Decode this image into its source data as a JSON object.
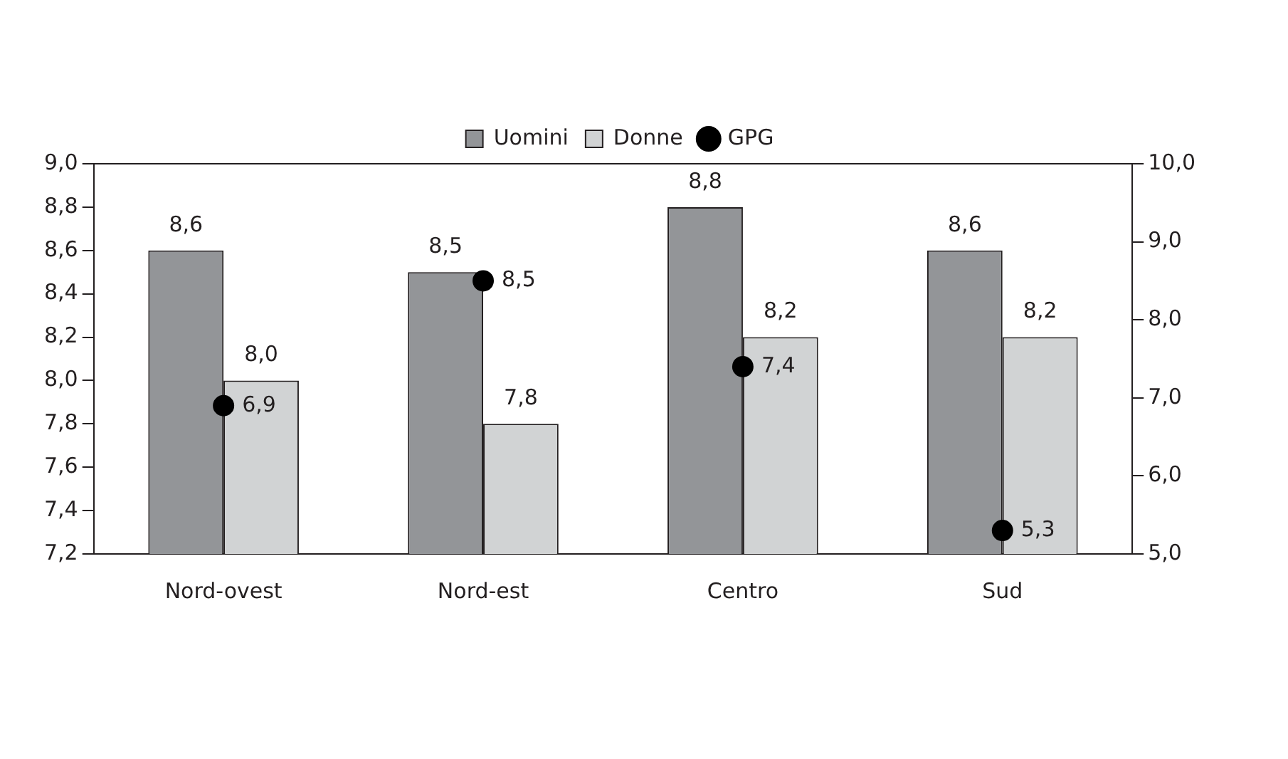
{
  "chart_data": {
    "type": "bar",
    "categories": [
      "Nord-ovest",
      "Nord-est",
      "Centro",
      "Sud"
    ],
    "series": [
      {
        "name": "Uomini",
        "color": "#939598",
        "values": [
          8.6,
          8.5,
          8.8,
          8.6
        ],
        "value_labels": [
          "8,6",
          "8,5",
          "8,8",
          "8,6"
        ]
      },
      {
        "name": "Donne",
        "color": "#d1d3d4",
        "values": [
          8.0,
          7.8,
          8.2,
          8.2
        ],
        "value_labels": [
          "8,0",
          "7,8",
          "8,2",
          "8,2"
        ]
      },
      {
        "name": "GPG",
        "type": "scatter",
        "axis": "y2",
        "color": "#000000",
        "values": [
          6.9,
          8.5,
          7.4,
          5.3
        ],
        "value_labels": [
          "6,9",
          "8,5",
          "7,4",
          "5,3"
        ]
      }
    ],
    "ylim": [
      7.2,
      9.0
    ],
    "yticks": [
      {
        "value": 7.2,
        "label": "7,2"
      },
      {
        "value": 7.4,
        "label": "7,4"
      },
      {
        "value": 7.6,
        "label": "7,6"
      },
      {
        "value": 7.8,
        "label": "7,8"
      },
      {
        "value": 8.0,
        "label": "8,0"
      },
      {
        "value": 8.2,
        "label": "8,2"
      },
      {
        "value": 8.4,
        "label": "8,4"
      },
      {
        "value": 8.6,
        "label": "8,6"
      },
      {
        "value": 8.8,
        "label": "8,8"
      },
      {
        "value": 9.0,
        "label": "9,0"
      }
    ],
    "y2lim": [
      5.0,
      10.0
    ],
    "y2ticks": [
      {
        "value": 5,
        "label": "5,0"
      },
      {
        "value": 6,
        "label": "6,0"
      },
      {
        "value": 7,
        "label": "7,0"
      },
      {
        "value": 8,
        "label": "8,0"
      },
      {
        "value": 9,
        "label": "9,0"
      },
      {
        "value": 10,
        "label": "10,0"
      }
    ],
    "legend": "top",
    "marker": "circle",
    "grid": false
  }
}
